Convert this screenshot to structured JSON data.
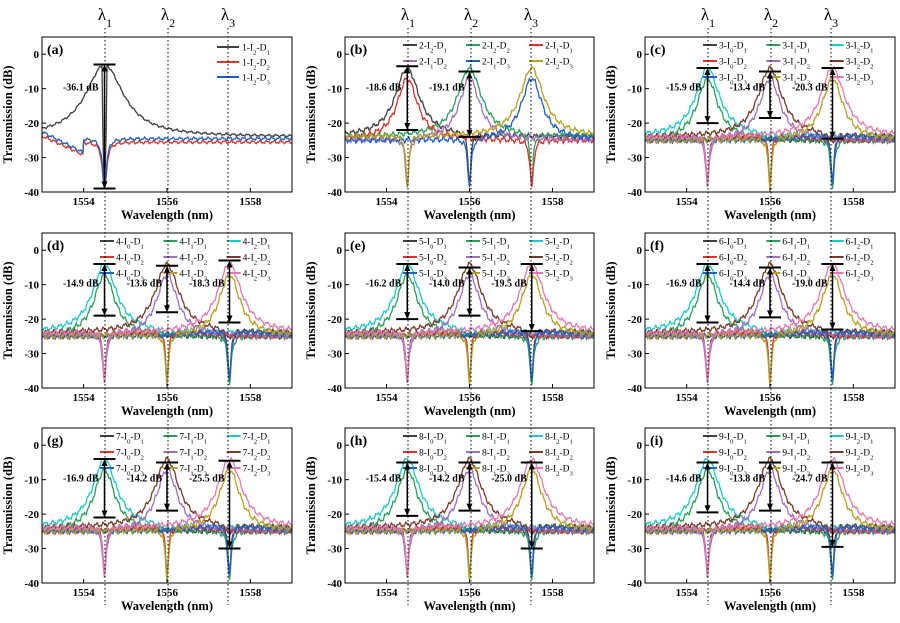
{
  "lambda_labels": [
    "λ1",
    "λ2",
    "λ3"
  ],
  "lambda_positions_nm": [
    1554.5,
    1556.0,
    1557.5
  ],
  "colors": {
    "D1_dark": "#404040",
    "green": "#2ca05a",
    "cyan": "#1cc8c8",
    "red": "#e0342c",
    "purple": "#a070c0",
    "brown": "#7a3b2a",
    "blue": "#2060c8",
    "olive": "#b8a020",
    "pink": "#e878b0"
  },
  "chart_data": [
    {
      "id": "a",
      "type": "line",
      "panel_label": "(a)",
      "xlabel": "Wavelength (nm)",
      "ylabel": "Transmission (dB)",
      "xlim": [
        1553,
        1559
      ],
      "ylim": [
        -40,
        5
      ],
      "xticks": [
        "1554",
        "1556",
        "1558"
      ],
      "yticks": [
        "0",
        "-10",
        "-20",
        "-30",
        "-40"
      ],
      "series": [
        {
          "name": "1-I2-D1",
          "color": "#404040",
          "notches": [
            1554.5
          ],
          "peaks": [],
          "base": -24,
          "peak_at": 1554.5,
          "peak_val": -3
        },
        {
          "name": "1-I2-D2",
          "color": "#e0342c",
          "notches": [
            1554.5
          ],
          "base": -25
        },
        {
          "name": "1-I2-D3",
          "color": "#2060c8",
          "notches": [
            1554.5
          ],
          "base": -24
        }
      ],
      "annotations": [
        {
          "text": "-36.1 dB",
          "x": 1554.5,
          "y_top": -3,
          "y_bottom": -39
        }
      ]
    },
    {
      "id": "b",
      "type": "line",
      "panel_label": "(b)",
      "xlabel": "Wavelength (nm)",
      "ylabel": "Transmission (dB)",
      "xlim": [
        1553,
        1559
      ],
      "ylim": [
        -40,
        5
      ],
      "xticks": [
        "1554",
        "1556",
        "1558"
      ],
      "yticks": [
        "0",
        "-10",
        "-20",
        "-30",
        "-40"
      ],
      "series": [
        {
          "name": "2-I2-D1",
          "color": "#404040"
        },
        {
          "name": "2-I2-D2",
          "color": "#2ca05a"
        },
        {
          "name": "2-I1-D1",
          "color": "#e0342c"
        },
        {
          "name": "2-I1-D2",
          "color": "#a070c0"
        },
        {
          "name": "2-I1-D3",
          "color": "#2060c8"
        },
        {
          "name": "2-I2-D3",
          "color": "#b8a020"
        }
      ],
      "annotations": [
        {
          "text": "-18.6 dB",
          "x": 1554.5,
          "y_top": -3.5,
          "y_bottom": -22
        },
        {
          "text": "-19.1 dB",
          "x": 1556.0,
          "y_top": -5,
          "y_bottom": -24
        }
      ]
    },
    {
      "id": "c",
      "type": "line",
      "panel_label": "(c)",
      "xlabel": "Wavelength (nm)",
      "ylabel": "Transmission (dB)",
      "xlim": [
        1553,
        1559
      ],
      "ylim": [
        -40,
        5
      ],
      "xticks": [
        "1554",
        "1556",
        "1558"
      ],
      "yticks": [
        "0",
        "-10",
        "-20",
        "-30",
        "-40"
      ],
      "series": [
        {
          "name": "3-I0-D1",
          "color": "#404040"
        },
        {
          "name": "3-I1-D1",
          "color": "#2ca05a"
        },
        {
          "name": "3-I2-D1",
          "color": "#1cc8c8"
        },
        {
          "name": "3-I0-D2",
          "color": "#e0342c"
        },
        {
          "name": "3-I1-D2",
          "color": "#a070c0"
        },
        {
          "name": "3-I2-D2",
          "color": "#7a3b2a"
        },
        {
          "name": "3-I0-D3",
          "color": "#2060c8"
        },
        {
          "name": "3-I1-D3",
          "color": "#b8a020"
        },
        {
          "name": "3-I2-D3",
          "color": "#e878b0"
        }
      ],
      "annotations": [
        {
          "text": "-15.9 dB",
          "x": 1554.5,
          "y_top": -4,
          "y_bottom": -20
        },
        {
          "text": "-13.4 dB",
          "x": 1556.0,
          "y_top": -5,
          "y_bottom": -18.5
        },
        {
          "text": "-20.3 dB",
          "x": 1557.5,
          "y_top": -4,
          "y_bottom": -24.5
        }
      ]
    },
    {
      "id": "d",
      "type": "line",
      "panel_label": "(d)",
      "xlabel": "Wavelength (nm)",
      "ylabel": "Transmission (dB)",
      "xlim": [
        1553,
        1559
      ],
      "ylim": [
        -40,
        5
      ],
      "xticks": [
        "1554",
        "1556",
        "1558"
      ],
      "yticks": [
        "0",
        "-10",
        "-20",
        "-30",
        "-40"
      ],
      "series": [
        {
          "name": "4-I0-D1",
          "color": "#404040"
        },
        {
          "name": "4-I1-D1",
          "color": "#2ca05a"
        },
        {
          "name": "4-I2-D1",
          "color": "#1cc8c8"
        },
        {
          "name": "4-I0-D2",
          "color": "#e0342c"
        },
        {
          "name": "4-I1-D2",
          "color": "#a070c0"
        },
        {
          "name": "4-I2-D2",
          "color": "#7a3b2a"
        },
        {
          "name": "4-I0-D3",
          "color": "#2060c8"
        },
        {
          "name": "4-I1-D3",
          "color": "#b8a020"
        },
        {
          "name": "4-I2-D3",
          "color": "#e878b0"
        }
      ],
      "annotations": [
        {
          "text": "-14.9 dB",
          "x": 1554.5,
          "y_top": -4,
          "y_bottom": -19
        },
        {
          "text": "-13.6 dB",
          "x": 1556.0,
          "y_top": -4.5,
          "y_bottom": -18
        },
        {
          "text": "-18.3 dB",
          "x": 1557.5,
          "y_top": -3,
          "y_bottom": -21
        }
      ]
    },
    {
      "id": "e",
      "type": "line",
      "panel_label": "(e)",
      "xlabel": "Wavelength (nm)",
      "ylabel": "Transmission (dB)",
      "xlim": [
        1553,
        1559
      ],
      "ylim": [
        -40,
        5
      ],
      "xticks": [
        "1554",
        "1556",
        "1558"
      ],
      "yticks": [
        "0",
        "-10",
        "-20",
        "-30",
        "-40"
      ],
      "series": [
        {
          "name": "5-I0-D1",
          "color": "#404040"
        },
        {
          "name": "5-I1-D1",
          "color": "#2ca05a"
        },
        {
          "name": "5-I2-D1",
          "color": "#1cc8c8"
        },
        {
          "name": "5-I0-D2",
          "color": "#e0342c"
        },
        {
          "name": "5-I1-D2",
          "color": "#a070c0"
        },
        {
          "name": "5-I2-D2",
          "color": "#7a3b2a"
        },
        {
          "name": "5-I0-D3",
          "color": "#2060c8"
        },
        {
          "name": "5-I1-D3",
          "color": "#b8a020"
        },
        {
          "name": "5-I2-D3",
          "color": "#e878b0"
        }
      ],
      "annotations": [
        {
          "text": "-16.2 dB",
          "x": 1554.5,
          "y_top": -4,
          "y_bottom": -20
        },
        {
          "text": "-14.0 dB",
          "x": 1556.0,
          "y_top": -5,
          "y_bottom": -19
        },
        {
          "text": "-19.5 dB",
          "x": 1557.5,
          "y_top": -4,
          "y_bottom": -23.5
        }
      ]
    },
    {
      "id": "f",
      "type": "line",
      "panel_label": "(f)",
      "xlabel": "Wavelength (nm)",
      "ylabel": "Transmission (dB)",
      "xlim": [
        1553,
        1559
      ],
      "ylim": [
        -40,
        5
      ],
      "xticks": [
        "1554",
        "1556",
        "1558"
      ],
      "yticks": [
        "0",
        "-10",
        "-20",
        "-30",
        "-40"
      ],
      "series": [
        {
          "name": "6-I0-D1",
          "color": "#404040"
        },
        {
          "name": "6-I1-D1",
          "color": "#2ca05a"
        },
        {
          "name": "6-I2-D1",
          "color": "#1cc8c8"
        },
        {
          "name": "6-I0-D2",
          "color": "#e0342c"
        },
        {
          "name": "6-I1-D2",
          "color": "#a070c0"
        },
        {
          "name": "6-I2-D2",
          "color": "#7a3b2a"
        },
        {
          "name": "6-I0-D3",
          "color": "#2060c8"
        },
        {
          "name": "6-I1-D3",
          "color": "#b8a020"
        },
        {
          "name": "6-I2-D3",
          "color": "#e878b0"
        }
      ],
      "annotations": [
        {
          "text": "-16.9 dB",
          "x": 1554.5,
          "y_top": -4,
          "y_bottom": -21
        },
        {
          "text": "-14.4 dB",
          "x": 1556.0,
          "y_top": -5,
          "y_bottom": -19.5
        },
        {
          "text": "-19.0 dB",
          "x": 1557.5,
          "y_top": -4,
          "y_bottom": -23
        }
      ]
    },
    {
      "id": "g",
      "type": "line",
      "panel_label": "(g)",
      "xlabel": "Wavelength (nm)",
      "ylabel": "Transmission (dB)",
      "xlim": [
        1553,
        1559
      ],
      "ylim": [
        -40,
        5
      ],
      "xticks": [
        "1554",
        "1556",
        "1558"
      ],
      "yticks": [
        "0",
        "-10",
        "-20",
        "-30",
        "-40"
      ],
      "series": [
        {
          "name": "7-I0-D1",
          "color": "#404040"
        },
        {
          "name": "7-I1-D1",
          "color": "#2ca05a"
        },
        {
          "name": "7-I2-D1",
          "color": "#1cc8c8"
        },
        {
          "name": "7-I0-D2",
          "color": "#e0342c"
        },
        {
          "name": "7-I1-D2",
          "color": "#a070c0"
        },
        {
          "name": "7-I2-D2",
          "color": "#7a3b2a"
        },
        {
          "name": "7-I0-D3",
          "color": "#2060c8"
        },
        {
          "name": "7-I1-D3",
          "color": "#b8a020"
        },
        {
          "name": "7-I2-D3",
          "color": "#e878b0"
        }
      ],
      "annotations": [
        {
          "text": "-16.9 dB",
          "x": 1554.5,
          "y_top": -4,
          "y_bottom": -21
        },
        {
          "text": "-14.2 dB",
          "x": 1556.0,
          "y_top": -5,
          "y_bottom": -19
        },
        {
          "text": "-25.5 dB",
          "x": 1557.5,
          "y_top": -4.5,
          "y_bottom": -30
        }
      ]
    },
    {
      "id": "h",
      "type": "line",
      "panel_label": "(h)",
      "xlabel": "Wavelength (nm)",
      "ylabel": "Transmission (dB)",
      "xlim": [
        1553,
        1559
      ],
      "ylim": [
        -40,
        5
      ],
      "xticks": [
        "1554",
        "1556",
        "1558"
      ],
      "yticks": [
        "0",
        "-10",
        "-20",
        "-30",
        "-40"
      ],
      "series": [
        {
          "name": "8-I0-D1",
          "color": "#404040"
        },
        {
          "name": "8-I1-D1",
          "color": "#2ca05a"
        },
        {
          "name": "8-I2-D1",
          "color": "#1cc8c8"
        },
        {
          "name": "8-I0-D2",
          "color": "#e0342c"
        },
        {
          "name": "8-I1-D2",
          "color": "#a070c0"
        },
        {
          "name": "8-I2-D2",
          "color": "#7a3b2a"
        },
        {
          "name": "8-I0-D3",
          "color": "#2060c8"
        },
        {
          "name": "8-I1-D3",
          "color": "#b8a020"
        },
        {
          "name": "8-I2-D3",
          "color": "#e878b0"
        }
      ],
      "annotations": [
        {
          "text": "-15.4 dB",
          "x": 1554.5,
          "y_top": -5,
          "y_bottom": -20.5
        },
        {
          "text": "-14.2 dB",
          "x": 1556.0,
          "y_top": -5,
          "y_bottom": -19
        },
        {
          "text": "-25.0 dB",
          "x": 1557.5,
          "y_top": -5,
          "y_bottom": -30
        }
      ]
    },
    {
      "id": "i",
      "type": "line",
      "panel_label": "(i)",
      "xlabel": "Wavelength (nm)",
      "ylabel": "Transmission (dB)",
      "xlim": [
        1553,
        1559
      ],
      "ylim": [
        -40,
        5
      ],
      "xticks": [
        "1554",
        "1556",
        "1558"
      ],
      "yticks": [
        "0",
        "-10",
        "-20",
        "-30",
        "-40"
      ],
      "series": [
        {
          "name": "9-I0-D1",
          "color": "#404040"
        },
        {
          "name": "9-I1-D1",
          "color": "#2ca05a"
        },
        {
          "name": "9-I2-D1",
          "color": "#1cc8c8"
        },
        {
          "name": "9-I0-D2",
          "color": "#e0342c"
        },
        {
          "name": "9-I1-D2",
          "color": "#a070c0"
        },
        {
          "name": "9-I2-D2",
          "color": "#7a3b2a"
        },
        {
          "name": "9-I0-D3",
          "color": "#2060c8"
        },
        {
          "name": "9-I1-D3",
          "color": "#b8a020"
        },
        {
          "name": "9-I2-D3",
          "color": "#e878b0"
        }
      ],
      "annotations": [
        {
          "text": "-14.6 dB",
          "x": 1554.5,
          "y_top": -5,
          "y_bottom": -19.5
        },
        {
          "text": "-13.8 dB",
          "x": 1556.0,
          "y_top": -5,
          "y_bottom": -19
        },
        {
          "text": "-24.7 dB",
          "x": 1557.5,
          "y_top": -5,
          "y_bottom": -29.5
        }
      ]
    }
  ]
}
